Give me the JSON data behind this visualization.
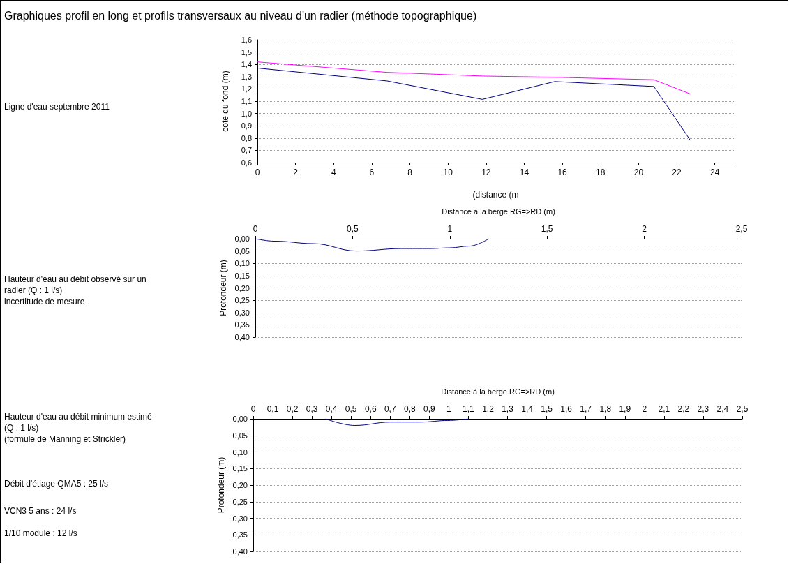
{
  "chart_data": [
    {
      "type": "line",
      "title": "Graphiques profil en long et profils transversaux au niveau d'un radier (méthode topographique)",
      "xlabel": "(distance (m",
      "ylabel": "cote du fond (m)",
      "annotations": [
        "Ligne d'eau septembre 2011"
      ],
      "x": [
        0,
        6.8,
        11.8,
        15.6,
        20.8,
        22.7
      ],
      "series": [
        {
          "color": "#ff00ff",
          "values": [
            1.42,
            1.335,
            1.305,
            1.295,
            1.275,
            1.16
          ]
        },
        {
          "color": "#000080",
          "values": [
            1.37,
            1.265,
            1.115,
            1.26,
            1.22,
            0.785
          ]
        }
      ],
      "xlim": [
        0,
        25
      ],
      "xticks": [
        0,
        2,
        4,
        6,
        8,
        10,
        12,
        14,
        16,
        18,
        20,
        22,
        24
      ],
      "ylim": [
        0.6,
        1.6
      ],
      "yticks": [
        {
          "value": 0.6,
          "label": "0,6"
        },
        {
          "value": 0.7,
          "label": "0,7"
        },
        {
          "value": 0.8,
          "label": "0,8"
        },
        {
          "value": 0.9,
          "label": "0,9"
        },
        {
          "value": 1.0,
          "label": "1,0"
        },
        {
          "value": 1.1,
          "label": "1,1"
        },
        {
          "value": 1.2,
          "label": "1,2"
        },
        {
          "value": 1.3,
          "label": "1,3"
        },
        {
          "value": 1.4,
          "label": "1,4"
        },
        {
          "value": 1.5,
          "label": "1,5"
        },
        {
          "value": 1.6,
          "label": "1,6"
        }
      ],
      "grid": "y",
      "marker": "none",
      "line_style": "solid"
    },
    {
      "type": "line",
      "xlabel": "Distance à la berge RG=>RD (m)",
      "ylabel": "Profondeur (m)",
      "annotations": [
        "Hauteur d'eau au débit observé sur un radier (Q : 1 l/s)\nincertitude de mesure"
      ],
      "x": [
        0,
        0.1,
        0.3,
        0.52,
        0.75,
        0.9,
        1.0,
        1.1,
        1.2
      ],
      "series": [
        {
          "color": "#000080",
          "values": [
            0,
            0.01,
            0.02,
            0.05,
            0.04,
            0.04,
            0.037,
            0.03,
            0
          ]
        }
      ],
      "xlim": [
        0,
        2.5
      ],
      "xticks": [
        0,
        {
          "value": 0.5,
          "label": "0,5"
        },
        1,
        {
          "value": 1.5,
          "label": "1,5"
        },
        2,
        {
          "value": 2.5,
          "label": "2,5"
        }
      ],
      "ylim": [
        0.4,
        0
      ],
      "yticks": [
        {
          "value": 0,
          "label": "0,00"
        },
        {
          "value": 0.05,
          "label": "0,05"
        },
        {
          "value": 0.1,
          "label": "0,10"
        },
        {
          "value": 0.15,
          "label": "0,15"
        },
        {
          "value": 0.2,
          "label": "0,20"
        },
        {
          "value": 0.25,
          "label": "0,25"
        },
        {
          "value": 0.3,
          "label": "0,30"
        },
        {
          "value": 0.35,
          "label": "0,35"
        },
        {
          "value": 0.4,
          "label": "0,40"
        }
      ],
      "grid": "y",
      "marker": "none",
      "line_style": "solid"
    },
    {
      "type": "line",
      "xlabel": "Distance à la berge RG=>RD (m)",
      "ylabel": "Profondeur (m)",
      "annotations": [
        "Hauteur d'eau au débit minimum estimé (Q : 1 l/s)\n(formule de Manning et Strickler)",
        "Débit d'étiage QMA5 : 25 l/s",
        "VCN3 5 ans : 24 l/s",
        "1/10 module : 12 l/s"
      ],
      "x": [
        0.37,
        0.52,
        0.7,
        0.85,
        1.0,
        1.1
      ],
      "series": [
        {
          "color": "#000080",
          "values": [
            0,
            0.02,
            0.01,
            0.01,
            0.005,
            0
          ]
        }
      ],
      "xlim": [
        0,
        2.5
      ],
      "xticks": [
        0,
        {
          "value": 0.1,
          "label": "0,1"
        },
        {
          "value": 0.2,
          "label": "0,2"
        },
        {
          "value": 0.3,
          "label": "0,3"
        },
        {
          "value": 0.4,
          "label": "0,4"
        },
        {
          "value": 0.5,
          "label": "0,5"
        },
        {
          "value": 0.6,
          "label": "0,6"
        },
        {
          "value": 0.7,
          "label": "0,7"
        },
        {
          "value": 0.8,
          "label": "0,8"
        },
        {
          "value": 0.9,
          "label": "0,9"
        },
        1,
        {
          "value": 1.1,
          "label": "1,1"
        },
        {
          "value": 1.2,
          "label": "1,2"
        },
        {
          "value": 1.3,
          "label": "1,3"
        },
        {
          "value": 1.4,
          "label": "1,4"
        },
        {
          "value": 1.5,
          "label": "1,5"
        },
        {
          "value": 1.6,
          "label": "1,6"
        },
        {
          "value": 1.7,
          "label": "1,7"
        },
        {
          "value": 1.8,
          "label": "1,8"
        },
        {
          "value": 1.9,
          "label": "1,9"
        },
        2,
        {
          "value": 2.1,
          "label": "2,1"
        },
        {
          "value": 2.2,
          "label": "2,2"
        },
        {
          "value": 2.3,
          "label": "2,3"
        },
        {
          "value": 2.4,
          "label": "2,4"
        },
        {
          "value": 2.5,
          "label": "2,5"
        }
      ],
      "ylim": [
        0.4,
        0
      ],
      "yticks": [
        {
          "value": 0,
          "label": "0,00"
        },
        {
          "value": 0.05,
          "label": "0,05"
        },
        {
          "value": 0.1,
          "label": "0,10"
        },
        {
          "value": 0.15,
          "label": "0,15"
        },
        {
          "value": 0.2,
          "label": "0,20"
        },
        {
          "value": 0.25,
          "label": "0,25"
        },
        {
          "value": 0.3,
          "label": "0,30"
        },
        {
          "value": 0.35,
          "label": "0,35"
        },
        {
          "value": 0.4,
          "label": "0,40"
        }
      ],
      "grid": "y",
      "marker": "none",
      "line_style": "solid"
    }
  ]
}
